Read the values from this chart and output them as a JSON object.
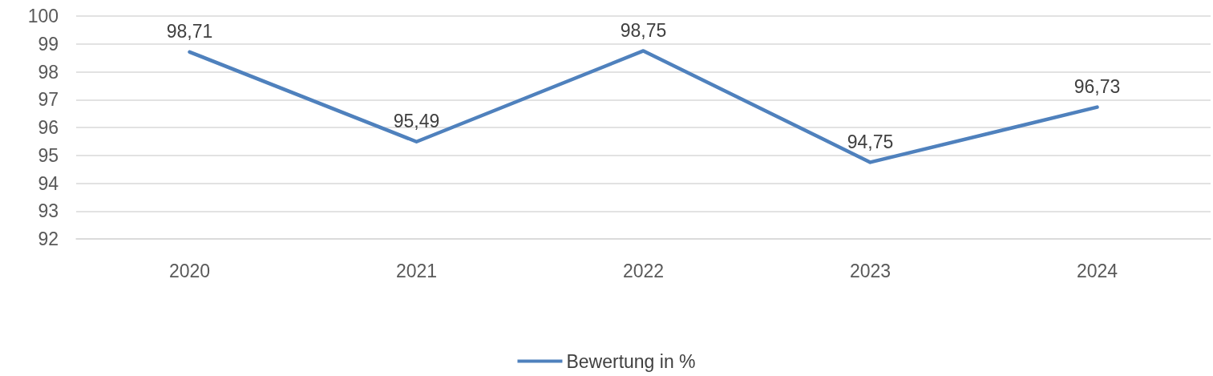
{
  "chart_data": {
    "type": "line",
    "categories": [
      "2020",
      "2021",
      "2022",
      "2023",
      "2024"
    ],
    "series": [
      {
        "name": "Bewertung in %",
        "color": "#4f81bd",
        "values": [
          98.71,
          95.49,
          98.75,
          94.75,
          96.73
        ],
        "value_labels": [
          "98,71",
          "95,49",
          "98,75",
          "94,75",
          "96,73"
        ]
      }
    ],
    "ylim": [
      92,
      100
    ],
    "yticks": [
      92,
      93,
      94,
      95,
      96,
      97,
      98,
      99,
      100
    ],
    "grid": "y",
    "legend": "bottom",
    "marker": "none",
    "line_style": "solid"
  }
}
